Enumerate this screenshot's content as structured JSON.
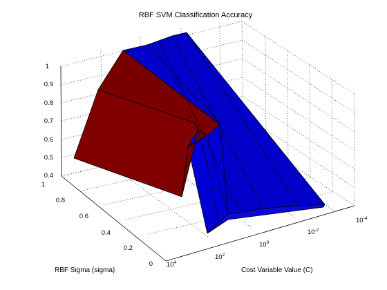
{
  "chart_data": {
    "type": "surface3d",
    "title": "RBF SVM Classification Accuracy",
    "xlabel": "Cost Variable Value (C)",
    "ylabel": "RBF Sigma (sigma)",
    "zlabel": "",
    "x_scale": "log",
    "x_ticks": [
      {
        "base": "10",
        "exp": "4"
      },
      {
        "base": "10",
        "exp": "2"
      },
      {
        "base": "10",
        "exp": "0"
      },
      {
        "base": "10",
        "exp": "-2"
      },
      {
        "base": "10",
        "exp": "-4"
      }
    ],
    "y_ticks": [
      "0",
      "0.2",
      "0.4",
      "0.6",
      "0.8",
      "1"
    ],
    "z_ticks": [
      "0.4",
      "0.5",
      "0.6",
      "0.7",
      "0.8",
      "0.9",
      "1"
    ],
    "xlim": [
      0.0001,
      10000
    ],
    "ylim": [
      0,
      1
    ],
    "zlim": [
      0.4,
      1
    ],
    "grid": true,
    "colors": {
      "high": "#7a0000",
      "low": "#0000cc"
    },
    "estimated_surface": {
      "C": [
        10000,
        1000,
        100,
        10,
        1,
        0.1,
        0.01,
        0.001,
        0.0001
      ],
      "sigma": [
        0.1,
        0.3,
        0.5,
        0.7,
        0.9
      ],
      "accuracy": [
        [
          0.5,
          0.5,
          0.5,
          0.5,
          0.5
        ],
        [
          0.5,
          0.52,
          0.55,
          0.55,
          0.8
        ],
        [
          0.5,
          0.55,
          0.62,
          0.65,
          1.0
        ],
        [
          0.5,
          0.58,
          0.7,
          0.8,
          1.0
        ],
        [
          0.5,
          0.58,
          0.7,
          0.8,
          1.0
        ],
        [
          0.5,
          0.55,
          0.62,
          0.65,
          1.0
        ],
        [
          0.5,
          0.52,
          0.55,
          0.58,
          0.95
        ],
        [
          0.5,
          0.5,
          0.5,
          0.5,
          0.8
        ],
        [
          0.5,
          0.5,
          0.5,
          0.5,
          0.5
        ]
      ]
    }
  }
}
